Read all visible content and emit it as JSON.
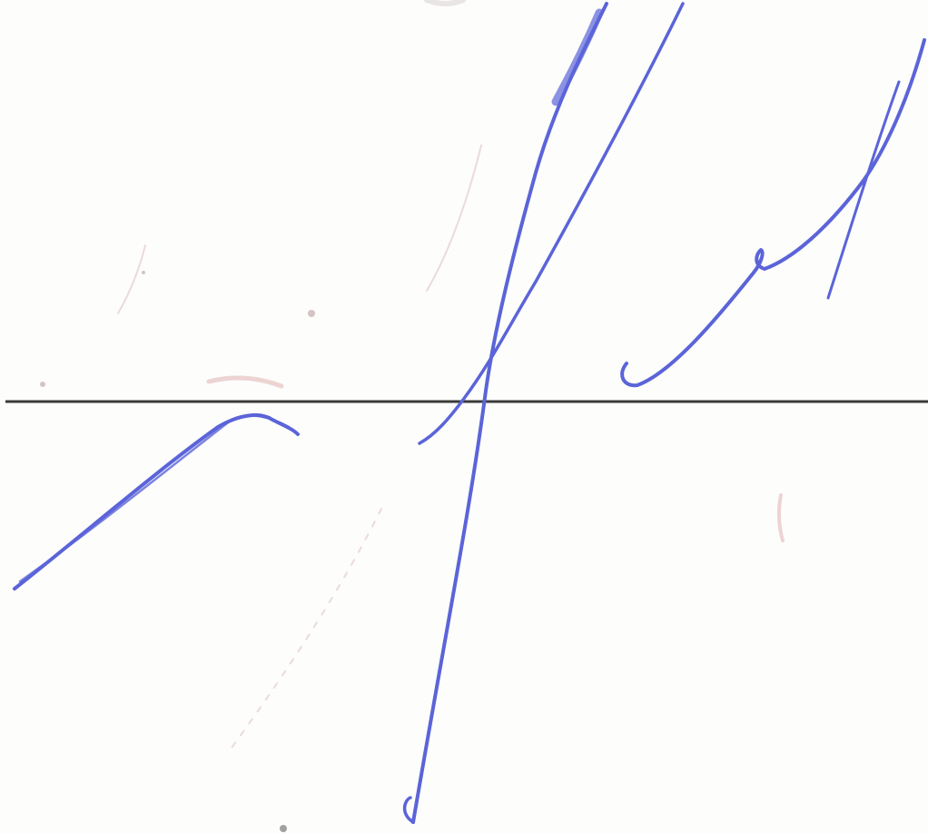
{
  "colors": {
    "paper": "#fdfdfc",
    "ink": "#5b64d8",
    "ink_dark": "#4a52c4",
    "rule_line": "#3a3a3a",
    "faint_bleed": "#d9b8b8"
  },
  "signature": {
    "type": "handwritten-signature",
    "color": "#5b64d8"
  },
  "rule": {
    "type": "horizontal-signature-line"
  }
}
